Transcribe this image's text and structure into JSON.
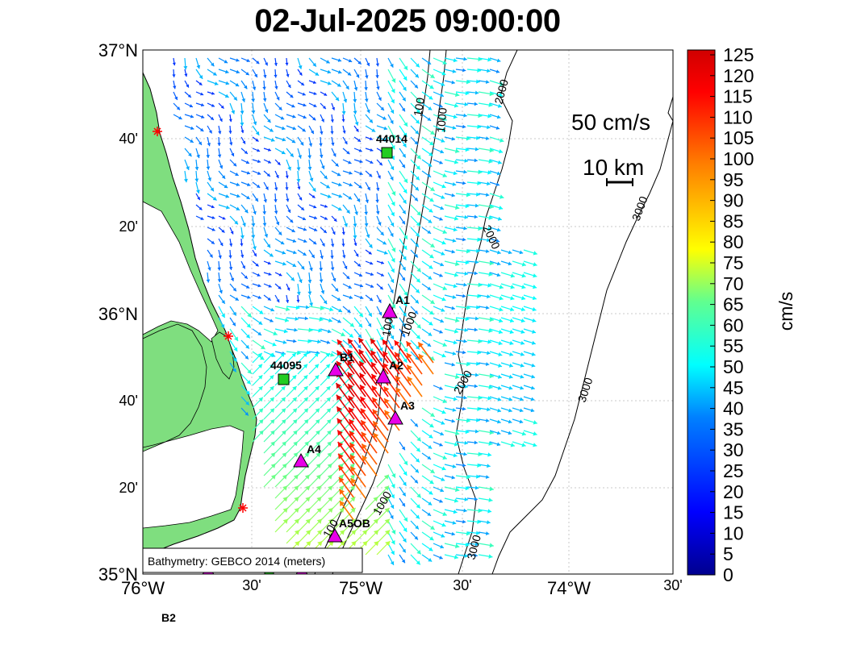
{
  "title": "02-Jul-2025 09:00:00",
  "x_ticks": [
    {
      "label": "76°W"
    },
    {
      "label": "30'"
    },
    {
      "label": "75°W"
    },
    {
      "label": "30'"
    },
    {
      "label": "74°W"
    },
    {
      "label": "30'"
    }
  ],
  "y_ticks": [
    {
      "label": "37°N"
    },
    {
      "label": "40'"
    },
    {
      "label": "20'"
    },
    {
      "label": "36°N"
    },
    {
      "label": "40'"
    },
    {
      "label": "20'"
    },
    {
      "label": "35°N"
    }
  ],
  "colorbar": {
    "label": "cm/s",
    "ticks": [
      "125",
      "120",
      "115",
      "110",
      "105",
      "100",
      "95",
      "90",
      "85",
      "80",
      "75",
      "70",
      "65",
      "60",
      "55",
      "50",
      "45",
      "40",
      "35",
      "30",
      "25",
      "20",
      "15",
      "10",
      "5",
      "0"
    ]
  },
  "scale": {
    "vector_label": "50 cm/s",
    "distance_label": "10 km"
  },
  "bathymetry_note": "Bathymetry: GEBCO 2014 (meters)",
  "contour_labels": {
    "c100a": "100",
    "c1000a": "1000",
    "c2000a": "2000",
    "c100b": "100",
    "c1000b": "1000",
    "c2000b": "2000",
    "c3000a": "3000",
    "c2000c": "2000",
    "c3000b": "3000",
    "c1000c": "1000",
    "c100c": "100",
    "c3000c": "3000"
  },
  "stations": {
    "s44014": "44014",
    "s44095": "44095",
    "A1": "A1",
    "B1": "B1",
    "A2": "A2",
    "A3": "A3",
    "A4": "A4",
    "A5": "A5OB",
    "B2": "B2"
  },
  "colors": {
    "land": "#7fde7f",
    "background": "#ffffff",
    "station_triangle": "#e800e8",
    "buoy_square": "#22cc22",
    "marker_red": "#ff0000"
  }
}
